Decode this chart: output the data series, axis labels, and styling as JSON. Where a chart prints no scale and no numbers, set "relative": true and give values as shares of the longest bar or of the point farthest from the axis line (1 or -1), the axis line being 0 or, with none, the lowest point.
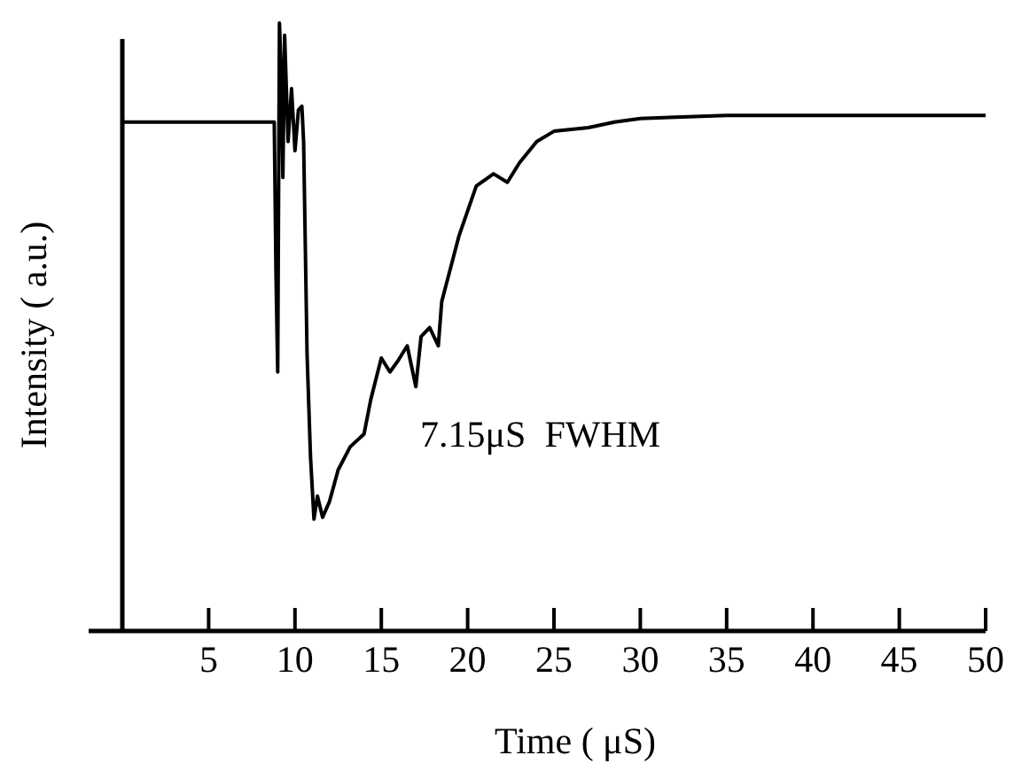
{
  "chart_data": {
    "type": "line",
    "relative": true,
    "xlabel": "Time ( μS)",
    "ylabel": "Intensity ( a.u.)",
    "xlim": [
      0,
      50
    ],
    "xticks": [
      5,
      10,
      15,
      20,
      25,
      30,
      35,
      40,
      45,
      50
    ],
    "grid": false,
    "marker": "none",
    "line_style": "solid",
    "annotations": [
      "7.15μS  FWHM"
    ],
    "series": [
      {
        "color": "#000000",
        "x": [
          0,
          8.8,
          8.9,
          9.0,
          9.1,
          9.2,
          9.3,
          9.4,
          9.6,
          9.8,
          10.0,
          10.2,
          10.4,
          10.5,
          10.7,
          10.9,
          11.1,
          11.3,
          11.6,
          12.0,
          12.5,
          13.2,
          14.0,
          14.4,
          15.0,
          15.5,
          16.0,
          16.5,
          17.0,
          17.3,
          17.8,
          18.3,
          18.5,
          19.5,
          20.5,
          21.5,
          22.3,
          23,
          24,
          25,
          27,
          28.5,
          30,
          32,
          35,
          50
        ],
        "values": [
          0.837,
          0.837,
          0.586,
          0.426,
          1.0,
          0.921,
          0.746,
          0.98,
          0.805,
          0.892,
          0.79,
          0.857,
          0.863,
          0.805,
          0.455,
          0.286,
          0.184,
          0.222,
          0.187,
          0.213,
          0.265,
          0.303,
          0.324,
          0.382,
          0.449,
          0.426,
          0.446,
          0.469,
          0.402,
          0.484,
          0.499,
          0.469,
          0.542,
          0.65,
          0.732,
          0.752,
          0.738,
          0.77,
          0.805,
          0.822,
          0.828,
          0.837,
          0.843,
          0.845,
          0.848,
          0.848
        ]
      }
    ]
  }
}
